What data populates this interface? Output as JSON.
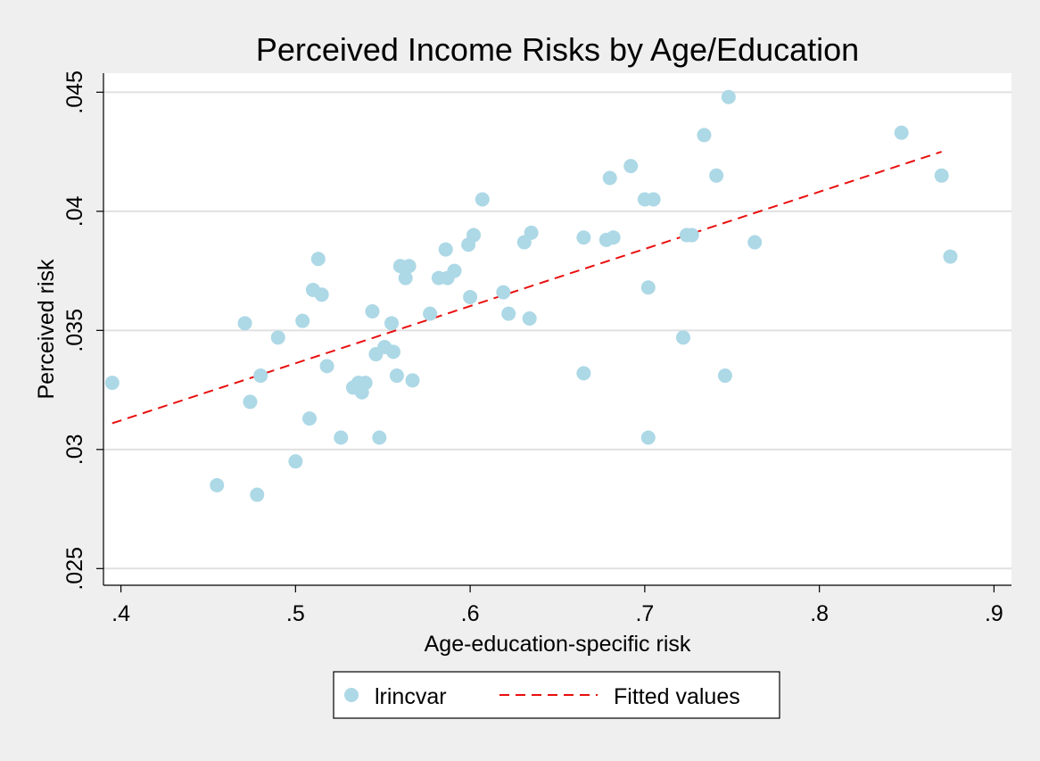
{
  "chart_data": {
    "type": "scatter",
    "title": "Perceived Income Risks by Age/Education",
    "xlabel": "Age-education-specific risk",
    "ylabel": "Perceived risk",
    "xlim": [
      0.39,
      0.91
    ],
    "ylim": [
      0.0243,
      0.0458
    ],
    "xticks": [
      0.4,
      0.5,
      0.6,
      0.7,
      0.8,
      0.9
    ],
    "xtick_labels": [
      ".4",
      ".5",
      ".6",
      ".7",
      ".8",
      ".9"
    ],
    "yticks": [
      0.025,
      0.03,
      0.035,
      0.04,
      0.045
    ],
    "ytick_labels": [
      ".025",
      ".03",
      ".035",
      ".04",
      ".045"
    ],
    "grid": "horizontal",
    "legend_position": "bottom",
    "colors": {
      "scatter": "#add8e6",
      "fit": "#e8100f",
      "grid": "#e0e0e0",
      "background": "#efefef",
      "plot_background": "#ffffff"
    },
    "series": [
      {
        "name": "lrincvar",
        "kind": "scatter",
        "points": [
          [
            0.395,
            0.0328
          ],
          [
            0.455,
            0.0285
          ],
          [
            0.471,
            0.0353
          ],
          [
            0.474,
            0.032
          ],
          [
            0.478,
            0.0281
          ],
          [
            0.48,
            0.0331
          ],
          [
            0.49,
            0.0347
          ],
          [
            0.5,
            0.0295
          ],
          [
            0.504,
            0.0354
          ],
          [
            0.508,
            0.0313
          ],
          [
            0.51,
            0.0367
          ],
          [
            0.513,
            0.038
          ],
          [
            0.515,
            0.0365
          ],
          [
            0.518,
            0.0335
          ],
          [
            0.526,
            0.0305
          ],
          [
            0.533,
            0.0326
          ],
          [
            0.536,
            0.0328
          ],
          [
            0.538,
            0.0324
          ],
          [
            0.54,
            0.0328
          ],
          [
            0.544,
            0.0358
          ],
          [
            0.546,
            0.034
          ],
          [
            0.548,
            0.0305
          ],
          [
            0.551,
            0.0343
          ],
          [
            0.555,
            0.0353
          ],
          [
            0.556,
            0.0341
          ],
          [
            0.558,
            0.0331
          ],
          [
            0.56,
            0.0377
          ],
          [
            0.563,
            0.0372
          ],
          [
            0.565,
            0.0377
          ],
          [
            0.567,
            0.0329
          ],
          [
            0.577,
            0.0357
          ],
          [
            0.582,
            0.0372
          ],
          [
            0.586,
            0.0384
          ],
          [
            0.587,
            0.0372
          ],
          [
            0.591,
            0.0375
          ],
          [
            0.599,
            0.0386
          ],
          [
            0.6,
            0.0364
          ],
          [
            0.602,
            0.039
          ],
          [
            0.607,
            0.0405
          ],
          [
            0.619,
            0.0366
          ],
          [
            0.622,
            0.0357
          ],
          [
            0.631,
            0.0387
          ],
          [
            0.634,
            0.0355
          ],
          [
            0.635,
            0.0391
          ],
          [
            0.665,
            0.0389
          ],
          [
            0.665,
            0.0332
          ],
          [
            0.678,
            0.0388
          ],
          [
            0.68,
            0.0414
          ],
          [
            0.682,
            0.0389
          ],
          [
            0.692,
            0.0419
          ],
          [
            0.7,
            0.0405
          ],
          [
            0.702,
            0.0368
          ],
          [
            0.702,
            0.0305
          ],
          [
            0.705,
            0.0405
          ],
          [
            0.722,
            0.0347
          ],
          [
            0.724,
            0.039
          ],
          [
            0.727,
            0.039
          ],
          [
            0.734,
            0.0432
          ],
          [
            0.741,
            0.0415
          ],
          [
            0.746,
            0.0331
          ],
          [
            0.748,
            0.0448
          ],
          [
            0.763,
            0.0387
          ],
          [
            0.847,
            0.0433
          ],
          [
            0.87,
            0.0415
          ],
          [
            0.875,
            0.0381
          ]
        ]
      },
      {
        "name": "Fitted values",
        "kind": "line",
        "style": "dashed",
        "x": [
          0.395,
          0.87
        ],
        "y": [
          0.0311,
          0.0425
        ]
      }
    ]
  }
}
